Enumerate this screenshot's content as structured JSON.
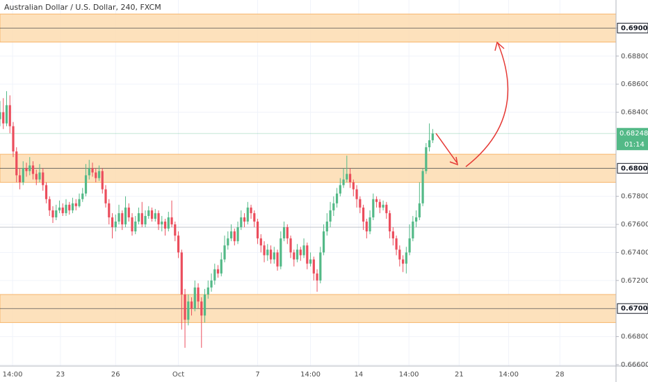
{
  "chart_data": {
    "type": "candlestick",
    "title": "Australian Dollar / U.S. Dollar, 240, FXCM",
    "up_color": "#53b987",
    "down_color": "#eb4d5c",
    "xlim": [
      0,
      186.5
    ],
    "ylim": [
      0.6659,
      0.692
    ],
    "grid": true,
    "xticks": [
      {
        "value": 3.8,
        "label": "14:00"
      },
      {
        "value": 18.3,
        "label": "23"
      },
      {
        "value": 35,
        "label": "26"
      },
      {
        "value": 54,
        "label": "Oct"
      },
      {
        "value": 78,
        "label": "7"
      },
      {
        "value": 94,
        "label": "14:00"
      },
      {
        "value": 108.6,
        "label": "14"
      },
      {
        "value": 123.8,
        "label": "14:00"
      },
      {
        "value": 139,
        "label": "21"
      },
      {
        "value": 154,
        "label": "14:00"
      },
      {
        "value": 169.5,
        "label": "28"
      }
    ],
    "yticks": [
      {
        "value": 0.69,
        "label": "0.69000"
      },
      {
        "value": 0.688,
        "label": "0.68800"
      },
      {
        "value": 0.686,
        "label": "0.68600"
      },
      {
        "value": 0.684,
        "label": "0.68400"
      },
      {
        "value": 0.68,
        "label": "0.68000"
      },
      {
        "value": 0.678,
        "label": "0.67800"
      },
      {
        "value": 0.676,
        "label": "0.67600"
      },
      {
        "value": 0.674,
        "label": "0.67400"
      },
      {
        "value": 0.672,
        "label": "0.67200"
      },
      {
        "value": 0.67,
        "label": "0.67000"
      },
      {
        "value": 0.668,
        "label": "0.66800"
      },
      {
        "value": 0.666,
        "label": "0.66600"
      }
    ],
    "zones": [
      {
        "low": 0.689,
        "high": 0.691,
        "level": 0.69
      },
      {
        "low": 0.679,
        "high": 0.681,
        "level": 0.68
      },
      {
        "low": 0.669,
        "high": 0.671,
        "level": 0.67
      }
    ],
    "hlines": [
      0.6758
    ],
    "last_price": {
      "value": 0.68248,
      "label": "0.68248"
    },
    "countdown": "01:14",
    "candles": [
      [
        0.6835,
        0.6848,
        0.683,
        0.684
      ],
      [
        0.684,
        0.685,
        0.6828,
        0.6832
      ],
      [
        0.6832,
        0.6855,
        0.683,
        0.6845
      ],
      [
        0.6845,
        0.6852,
        0.6825,
        0.683
      ],
      [
        0.683,
        0.6833,
        0.6808,
        0.6812
      ],
      [
        0.6812,
        0.6815,
        0.679,
        0.6795
      ],
      [
        0.6795,
        0.68,
        0.6785,
        0.679
      ],
      [
        0.679,
        0.6805,
        0.6788,
        0.68
      ],
      [
        0.68,
        0.6804,
        0.6794,
        0.6798
      ],
      [
        0.6798,
        0.6808,
        0.6795,
        0.6802
      ],
      [
        0.6802,
        0.6805,
        0.6792,
        0.6796
      ],
      [
        0.6796,
        0.6799,
        0.6788,
        0.6792
      ],
      [
        0.6792,
        0.6803,
        0.679,
        0.6797
      ],
      [
        0.6797,
        0.68,
        0.6784,
        0.6788
      ],
      [
        0.6788,
        0.679,
        0.6775,
        0.6778
      ],
      [
        0.6778,
        0.678,
        0.6766,
        0.677
      ],
      [
        0.677,
        0.6773,
        0.6761,
        0.6765
      ],
      [
        0.6765,
        0.6774,
        0.6763,
        0.677
      ],
      [
        0.677,
        0.6777,
        0.6768,
        0.6772
      ],
      [
        0.6772,
        0.6775,
        0.6766,
        0.6768
      ],
      [
        0.6768,
        0.6778,
        0.6766,
        0.6774
      ],
      [
        0.6774,
        0.6776,
        0.6767,
        0.677
      ],
      [
        0.677,
        0.6779,
        0.6768,
        0.6775
      ],
      [
        0.6775,
        0.6778,
        0.677,
        0.6773
      ],
      [
        0.6773,
        0.6782,
        0.6772,
        0.6778
      ],
      [
        0.6778,
        0.6786,
        0.6776,
        0.6782
      ],
      [
        0.6782,
        0.6803,
        0.678,
        0.6795
      ],
      [
        0.6795,
        0.6806,
        0.6792,
        0.68
      ],
      [
        0.68,
        0.6804,
        0.6794,
        0.6797
      ],
      [
        0.6797,
        0.68,
        0.679,
        0.6793
      ],
      [
        0.6793,
        0.6802,
        0.6791,
        0.6798
      ],
      [
        0.6798,
        0.68,
        0.6782,
        0.6785
      ],
      [
        0.6785,
        0.6788,
        0.6772,
        0.6775
      ],
      [
        0.6775,
        0.6778,
        0.676,
        0.6765
      ],
      [
        0.6765,
        0.6768,
        0.675,
        0.6758
      ],
      [
        0.6758,
        0.6767,
        0.6755,
        0.6762
      ],
      [
        0.6762,
        0.6774,
        0.676,
        0.6768
      ],
      [
        0.6768,
        0.677,
        0.6756,
        0.676
      ],
      [
        0.676,
        0.678,
        0.6758,
        0.6772
      ],
      [
        0.6772,
        0.6775,
        0.6762,
        0.6765
      ],
      [
        0.6765,
        0.6768,
        0.6752,
        0.6755
      ],
      [
        0.6755,
        0.6766,
        0.6753,
        0.6762
      ],
      [
        0.6762,
        0.6772,
        0.676,
        0.6768
      ],
      [
        0.6768,
        0.6776,
        0.6758,
        0.676
      ],
      [
        0.676,
        0.677,
        0.6758,
        0.6766
      ],
      [
        0.6766,
        0.6773,
        0.6764,
        0.677
      ],
      [
        0.677,
        0.6772,
        0.6762,
        0.6764
      ],
      [
        0.6764,
        0.6771,
        0.6762,
        0.6768
      ],
      [
        0.6768,
        0.677,
        0.6756,
        0.676
      ],
      [
        0.676,
        0.6766,
        0.6755,
        0.6762
      ],
      [
        0.6762,
        0.6764,
        0.6752,
        0.6757
      ],
      [
        0.6757,
        0.6769,
        0.6755,
        0.6765
      ],
      [
        0.6765,
        0.6777,
        0.6758,
        0.676
      ],
      [
        0.676,
        0.6762,
        0.6748,
        0.6752
      ],
      [
        0.6752,
        0.6755,
        0.6736,
        0.674
      ],
      [
        0.674,
        0.6742,
        0.6685,
        0.671
      ],
      [
        0.671,
        0.6714,
        0.6672,
        0.6692
      ],
      [
        0.6692,
        0.671,
        0.6688,
        0.6705
      ],
      [
        0.6705,
        0.6708,
        0.6695,
        0.67
      ],
      [
        0.67,
        0.672,
        0.6698,
        0.6715
      ],
      [
        0.6715,
        0.6718,
        0.67,
        0.6705
      ],
      [
        0.6705,
        0.6708,
        0.6672,
        0.6695
      ],
      [
        0.6695,
        0.6714,
        0.669,
        0.671
      ],
      [
        0.671,
        0.672,
        0.6707,
        0.6715
      ],
      [
        0.6715,
        0.6725,
        0.6712,
        0.672
      ],
      [
        0.672,
        0.6732,
        0.6717,
        0.6728
      ],
      [
        0.6728,
        0.6731,
        0.6722,
        0.6725
      ],
      [
        0.6725,
        0.674,
        0.6723,
        0.6735
      ],
      [
        0.6735,
        0.6752,
        0.6733,
        0.6745
      ],
      [
        0.6745,
        0.6755,
        0.6742,
        0.675
      ],
      [
        0.675,
        0.676,
        0.6748,
        0.6755
      ],
      [
        0.6755,
        0.6757,
        0.6745,
        0.6748
      ],
      [
        0.6748,
        0.6762,
        0.6746,
        0.6758
      ],
      [
        0.6758,
        0.677,
        0.6756,
        0.6765
      ],
      [
        0.6765,
        0.6768,
        0.6758,
        0.6762
      ],
      [
        0.6762,
        0.6776,
        0.676,
        0.6772
      ],
      [
        0.6772,
        0.6774,
        0.6764,
        0.6768
      ],
      [
        0.6768,
        0.677,
        0.6758,
        0.6762
      ],
      [
        0.6762,
        0.6764,
        0.6746,
        0.675
      ],
      [
        0.675,
        0.6753,
        0.674,
        0.6745
      ],
      [
        0.6745,
        0.6748,
        0.6733,
        0.6738
      ],
      [
        0.6738,
        0.6746,
        0.6734,
        0.6742
      ],
      [
        0.6742,
        0.6745,
        0.6732,
        0.6735
      ],
      [
        0.6735,
        0.6744,
        0.6732,
        0.674
      ],
      [
        0.674,
        0.6742,
        0.6727,
        0.673
      ],
      [
        0.673,
        0.6755,
        0.6728,
        0.675
      ],
      [
        0.675,
        0.6762,
        0.6748,
        0.6758
      ],
      [
        0.6758,
        0.676,
        0.6746,
        0.675
      ],
      [
        0.675,
        0.6752,
        0.6736,
        0.674
      ],
      [
        0.674,
        0.6742,
        0.673,
        0.6735
      ],
      [
        0.6735,
        0.6746,
        0.6733,
        0.6742
      ],
      [
        0.6742,
        0.6744,
        0.6734,
        0.6738
      ],
      [
        0.6738,
        0.675,
        0.6736,
        0.6745
      ],
      [
        0.6745,
        0.6747,
        0.6728,
        0.6732
      ],
      [
        0.6732,
        0.674,
        0.673,
        0.6735
      ],
      [
        0.6735,
        0.6737,
        0.672,
        0.6725
      ],
      [
        0.6725,
        0.6728,
        0.6712,
        0.672
      ],
      [
        0.672,
        0.6744,
        0.6718,
        0.674
      ],
      [
        0.674,
        0.676,
        0.6738,
        0.6755
      ],
      [
        0.6755,
        0.6768,
        0.6752,
        0.6762
      ],
      [
        0.6762,
        0.6776,
        0.6758,
        0.677
      ],
      [
        0.677,
        0.678,
        0.6766,
        0.6775
      ],
      [
        0.6775,
        0.6786,
        0.6772,
        0.6782
      ],
      [
        0.6782,
        0.6793,
        0.678,
        0.6788
      ],
      [
        0.6788,
        0.68,
        0.6786,
        0.6792
      ],
      [
        0.6792,
        0.6809,
        0.679,
        0.6796
      ],
      [
        0.6796,
        0.68,
        0.6786,
        0.679
      ],
      [
        0.679,
        0.6792,
        0.678,
        0.6785
      ],
      [
        0.6785,
        0.6788,
        0.6772,
        0.6778
      ],
      [
        0.6778,
        0.678,
        0.6768,
        0.6772
      ],
      [
        0.6772,
        0.6774,
        0.6756,
        0.6762
      ],
      [
        0.6762,
        0.6764,
        0.675,
        0.6755
      ],
      [
        0.6755,
        0.677,
        0.6753,
        0.6765
      ],
      [
        0.6765,
        0.6782,
        0.6763,
        0.6778
      ],
      [
        0.6778,
        0.678,
        0.6772,
        0.6776
      ],
      [
        0.6776,
        0.6778,
        0.6768,
        0.6772
      ],
      [
        0.6772,
        0.6777,
        0.677,
        0.6774
      ],
      [
        0.6774,
        0.6776,
        0.6764,
        0.6768
      ],
      [
        0.6768,
        0.677,
        0.675,
        0.6755
      ],
      [
        0.6755,
        0.6758,
        0.6745,
        0.675
      ],
      [
        0.675,
        0.6752,
        0.6738,
        0.6742
      ],
      [
        0.6742,
        0.6745,
        0.673,
        0.6735
      ],
      [
        0.6735,
        0.6738,
        0.6726,
        0.6732
      ],
      [
        0.6732,
        0.6744,
        0.6725,
        0.674
      ],
      [
        0.674,
        0.676,
        0.6738,
        0.675
      ],
      [
        0.675,
        0.6766,
        0.6748,
        0.6762
      ],
      [
        0.6762,
        0.677,
        0.6758,
        0.6765
      ],
      [
        0.6765,
        0.679,
        0.6763,
        0.6775
      ],
      [
        0.6775,
        0.68,
        0.6773,
        0.6798
      ],
      [
        0.6798,
        0.6818,
        0.6796,
        0.6815
      ],
      [
        0.6815,
        0.6832,
        0.6812,
        0.682
      ],
      [
        0.682,
        0.6828,
        0.6818,
        0.68248
      ]
    ]
  }
}
